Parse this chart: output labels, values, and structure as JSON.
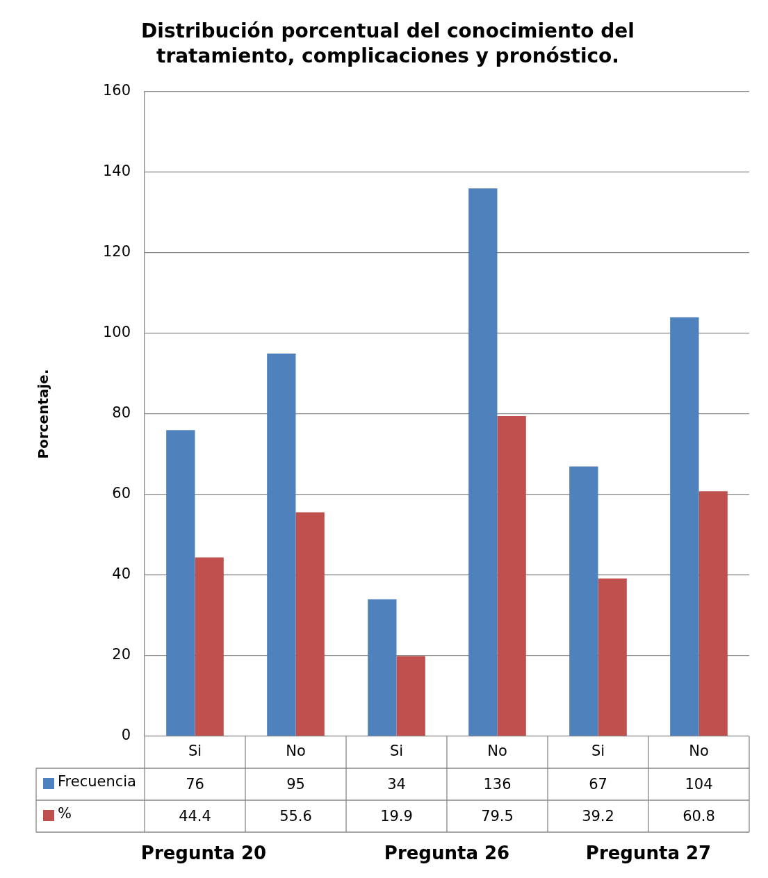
{
  "chart_data": {
    "type": "bar",
    "title": "Distribución porcentual del conocimiento del tratamiento, complicaciones y pronóstico.",
    "ylabel": "Porcentaje.",
    "categories": [
      "Si",
      "No",
      "Si",
      "No",
      "Si",
      "No"
    ],
    "series": [
      {
        "name": "Frecuencia",
        "color": "#4f81bd",
        "values": [
          76,
          95,
          34,
          136,
          67,
          104
        ]
      },
      {
        "name": "%",
        "color": "#c0504d",
        "values": [
          44.4,
          55.6,
          19.9,
          79.5,
          39.2,
          60.8
        ]
      }
    ],
    "ylim": [
      0,
      160
    ],
    "yticks": [
      0,
      20,
      40,
      60,
      80,
      100,
      120,
      140,
      160
    ],
    "grid": "y",
    "legend": "bottom",
    "data_labels": true,
    "annotations": [
      "Pregunta 20",
      "Pregunta 26",
      "Pregunta 27"
    ]
  }
}
